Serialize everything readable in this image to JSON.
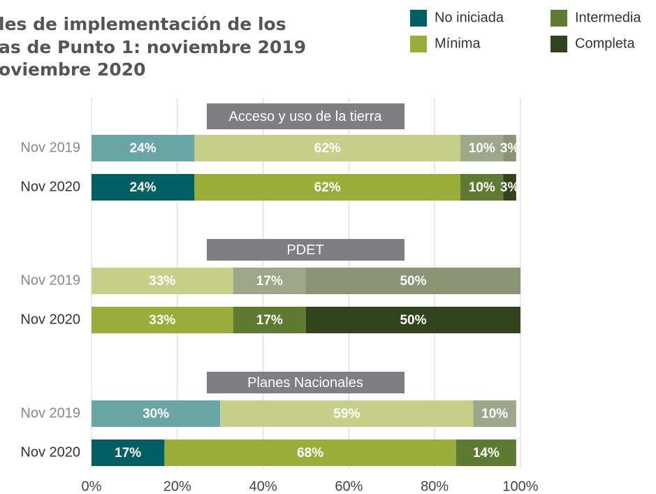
{
  "title": [
    "les de implementación de los",
    "as de Punto 1: noviembre 2019",
    "oviembre 2020"
  ],
  "legend": [
    {
      "name": "No iniciada",
      "color": "#005f63",
      "faded_color": "#6aa6a6"
    },
    {
      "name": "Mínima",
      "color": "#9aad3a",
      "faded_color": "#c6d08a"
    },
    {
      "name": "Intermedia",
      "color": "#5f7a33",
      "faded_color": "#9ea78a"
    },
    {
      "name": "Completa",
      "color": "#33431d",
      "faded_color": "#8b9474"
    }
  ],
  "axis": {
    "xlim": [
      0,
      100
    ],
    "xticks": [
      {
        "value": 0,
        "label": "0%"
      },
      {
        "value": 20,
        "label": "20%"
      },
      {
        "value": 40,
        "label": "40%"
      },
      {
        "value": 60,
        "label": "60%"
      },
      {
        "value": 80,
        "label": "80%"
      },
      {
        "value": 100,
        "label": "100%"
      }
    ],
    "grid": true
  },
  "chart_data": [
    {
      "type": "bar",
      "orientation": "horizontal",
      "stacked": true,
      "title": "Acceso y uso de la tierra",
      "categories": [
        "Nov 2019",
        "Nov 2020"
      ],
      "series": [
        {
          "values": [
            24,
            24
          ],
          "value_labels": [
            "24%",
            "24%"
          ]
        },
        {
          "values": [
            62,
            62
          ],
          "value_labels": [
            "62%",
            "62%"
          ]
        },
        {
          "values": [
            10,
            10
          ],
          "value_labels": [
            "10%",
            "10%"
          ]
        },
        {
          "values": [
            3,
            3
          ],
          "value_labels": [
            "3%",
            "3%"
          ]
        }
      ]
    },
    {
      "type": "bar",
      "orientation": "horizontal",
      "stacked": true,
      "title": "PDET",
      "categories": [
        "Nov 2019",
        "Nov 2020"
      ],
      "series": [
        {
          "values": [
            null,
            null
          ],
          "value_labels": [
            null,
            null
          ]
        },
        {
          "values": [
            33,
            33
          ],
          "value_labels": [
            "33%",
            "33%"
          ]
        },
        {
          "values": [
            17,
            17
          ],
          "value_labels": [
            "17%",
            "17%"
          ]
        },
        {
          "values": [
            50,
            50
          ],
          "value_labels": [
            "50%",
            "50%"
          ]
        }
      ]
    },
    {
      "type": "bar",
      "orientation": "horizontal",
      "stacked": true,
      "title": "Planes Nacionales",
      "categories": [
        "Nov 2019",
        "Nov 2020"
      ],
      "series": [
        {
          "values": [
            30,
            17
          ],
          "value_labels": [
            "30%",
            "17%"
          ]
        },
        {
          "values": [
            59,
            68
          ],
          "value_labels": [
            "59%",
            "68%"
          ]
        },
        {
          "values": [
            10,
            14
          ],
          "value_labels": [
            "10%",
            "14%"
          ]
        },
        {
          "values": [
            null,
            null
          ],
          "value_labels": [
            null,
            null
          ]
        }
      ]
    }
  ]
}
